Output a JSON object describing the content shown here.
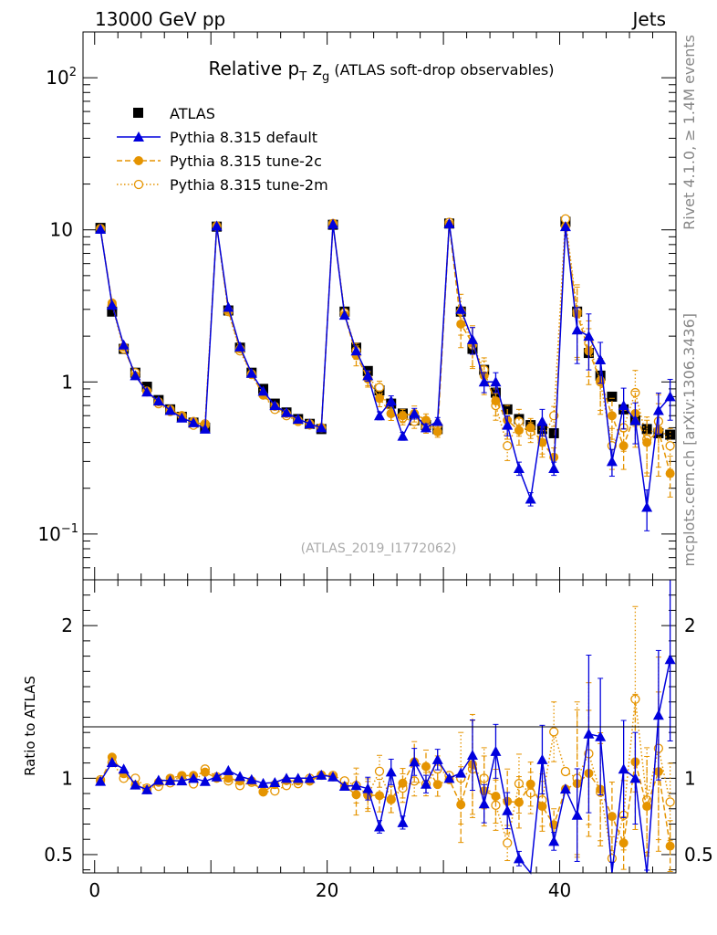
{
  "header": {
    "beam": "13000 GeV pp",
    "category": "Jets"
  },
  "side_text": {
    "rivet": "Rivet 4.1.0, ≥ 1.4M events",
    "site": "mcplots.cern.ch [arXiv:1306.3436]"
  },
  "colors": {
    "atlas": "#000000",
    "default": "#0000dd",
    "tune2c": "#e59400",
    "tune2m": "#e59400"
  },
  "chart_data": {
    "type": "line",
    "title": "Relative p_T z_g (ATLAS soft-drop observables)",
    "title_parts": {
      "main": "Relative p",
      "sub1": "T",
      "mid": " z",
      "sub2": "g",
      "rest": " (ATLAS soft-drop observables)"
    },
    "analysis": "(ATLAS_2019_I1772062)",
    "ylabel_ratio": "Ratio to ATLAS",
    "xlim": [
      -1,
      50
    ],
    "ylim": [
      0.05,
      200
    ],
    "ratio_ylim": [
      0.38,
      2.3
    ],
    "x_ticks": [
      {
        "v": 0,
        "label": "0"
      },
      {
        "v": 20,
        "label": "20"
      },
      {
        "v": 40,
        "label": "40"
      }
    ],
    "y_ticks": [
      {
        "v": 100,
        "base": "10",
        "exp": "2"
      },
      {
        "v": 10,
        "base": "10",
        "exp": ""
      },
      {
        "v": 1,
        "base": "1",
        "exp": ""
      },
      {
        "v": 0.1,
        "base": "10",
        "exp": "−1"
      }
    ],
    "ratio_ticks": [
      {
        "v": 2,
        "label": "2"
      },
      {
        "v": 1,
        "label": "1"
      },
      {
        "v": 0.5,
        "label": "0.5"
      }
    ],
    "legend": [
      "ATLAS",
      "Pythia 8.315 default",
      "Pythia 8.315 tune-2c",
      "Pythia 8.315 tune-2m"
    ],
    "x": [
      0.5,
      1.5,
      2.5,
      3.5,
      4.5,
      5.5,
      6.5,
      7.5,
      8.5,
      9.5,
      10.5,
      11.5,
      12.5,
      13.5,
      14.5,
      15.5,
      16.5,
      17.5,
      18.5,
      19.5,
      20.5,
      21.5,
      22.5,
      23.5,
      24.5,
      25.5,
      26.5,
      27.5,
      28.5,
      29.5,
      30.5,
      31.5,
      32.5,
      33.5,
      34.5,
      35.5,
      36.5,
      37.5,
      38.5,
      39.5,
      40.5,
      41.5,
      42.5,
      43.5,
      44.5,
      45.5,
      46.5,
      47.5,
      48.5,
      49.5
    ],
    "series": [
      {
        "name": "ATLAS",
        "values": [
          10.3,
          2.9,
          1.65,
          1.15,
          0.93,
          0.76,
          0.66,
          0.59,
          0.54,
          0.5,
          10.5,
          2.95,
          1.68,
          1.15,
          0.9,
          0.72,
          0.63,
          0.57,
          0.53,
          0.49,
          10.8,
          2.9,
          1.68,
          1.18,
          0.88,
          0.72,
          0.62,
          0.56,
          0.52,
          0.49,
          11.0,
          2.9,
          1.65,
          1.2,
          0.85,
          0.66,
          0.57,
          0.52,
          0.49,
          0.46,
          11.3,
          2.9,
          1.55,
          1.1,
          0.8,
          0.66,
          0.56,
          0.49,
          0.46,
          0.45
        ]
      },
      {
        "name": "Pythia 8.315 default",
        "values": [
          10.1,
          3.2,
          1.75,
          1.1,
          0.86,
          0.75,
          0.65,
          0.58,
          0.54,
          0.49,
          10.6,
          3.1,
          1.7,
          1.14,
          0.87,
          0.7,
          0.63,
          0.57,
          0.53,
          0.5,
          10.9,
          2.75,
          1.6,
          1.1,
          0.6,
          0.75,
          0.44,
          0.62,
          0.5,
          0.55,
          11.0,
          3.0,
          1.9,
          1.0,
          1.0,
          0.52,
          0.27,
          0.17,
          0.55,
          0.27,
          10.5,
          2.2,
          2.0,
          1.4,
          0.3,
          0.7,
          0.56,
          0.15,
          0.65,
          0.8
        ],
        "err": [
          0,
          0,
          0,
          0,
          0,
          0,
          0,
          0,
          0,
          0,
          0,
          0,
          0,
          0,
          0,
          0,
          0,
          0,
          0,
          0,
          0,
          0,
          0,
          0.08,
          0.06,
          0.08,
          0.06,
          0.08,
          0.06,
          0.06,
          0,
          0,
          0.2,
          0.15,
          0.15,
          0.15,
          0.1,
          0.1,
          0.2,
          0.1,
          0,
          0.4,
          0.4,
          0.3,
          0.2,
          0.3,
          0.3,
          0.3,
          0.3,
          0.3
        ]
      },
      {
        "name": "Pythia 8.315 tune-2c",
        "values": [
          10.1,
          3.3,
          1.7,
          1.1,
          0.86,
          0.74,
          0.66,
          0.6,
          0.55,
          0.52,
          10.5,
          2.95,
          1.65,
          1.13,
          0.82,
          0.69,
          0.62,
          0.56,
          0.52,
          0.5,
          10.9,
          2.75,
          1.5,
          1.05,
          0.78,
          0.62,
          0.6,
          0.62,
          0.56,
          0.47,
          10.9,
          2.4,
          1.8,
          1.1,
          0.75,
          0.56,
          0.48,
          0.5,
          0.4,
          0.32,
          10.5,
          2.8,
          1.6,
          1.02,
          0.6,
          0.38,
          0.62,
          0.4,
          0.48,
          0.25
        ],
        "err": [
          0,
          0,
          0,
          0,
          0,
          0,
          0,
          0,
          0,
          0,
          0,
          0,
          0,
          0,
          0,
          0,
          0,
          0,
          0,
          0,
          0,
          0,
          0.15,
          0.12,
          0.12,
          0.1,
          0.1,
          0.12,
          0.1,
          0.08,
          0,
          0.3,
          0.3,
          0.25,
          0.2,
          0.25,
          0.2,
          0.15,
          0.2,
          0.15,
          0,
          0.5,
          0.4,
          0.4,
          0.3,
          0.3,
          0.4,
          0.4,
          0.5,
          0.3
        ]
      },
      {
        "name": "Pythia 8.315 tune-2m",
        "values": [
          10.2,
          3.2,
          1.65,
          1.15,
          0.87,
          0.72,
          0.64,
          0.6,
          0.52,
          0.53,
          10.6,
          2.9,
          1.6,
          1.12,
          0.82,
          0.66,
          0.6,
          0.55,
          0.53,
          0.5,
          11.0,
          2.85,
          1.6,
          1.05,
          0.92,
          0.62,
          0.58,
          0.55,
          0.5,
          0.52,
          11.2,
          2.9,
          1.75,
          1.2,
          0.7,
          0.38,
          0.55,
          0.47,
          0.42,
          0.6,
          11.8,
          2.9,
          1.8,
          1.0,
          0.38,
          0.5,
          0.85,
          0.42,
          0.55,
          0.38
        ],
        "err": [
          0,
          0,
          0,
          0,
          0,
          0,
          0,
          0,
          0,
          0,
          0,
          0,
          0,
          0,
          0,
          0,
          0,
          0,
          0,
          0,
          0,
          0,
          0.12,
          0.1,
          0.1,
          0.1,
          0.1,
          0.1,
          0.08,
          0.08,
          0,
          0.3,
          0.3,
          0.2,
          0.2,
          0.2,
          0.2,
          0.15,
          0.2,
          0.15,
          0,
          0.5,
          0.4,
          0.35,
          0.3,
          0.3,
          0.4,
          0.4,
          0.5,
          0.3
        ]
      }
    ]
  }
}
